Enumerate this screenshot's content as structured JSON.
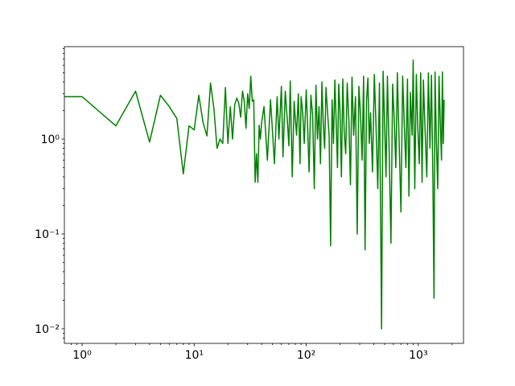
{
  "chart_data": {
    "type": "line",
    "color": "#008000",
    "xscale": "log",
    "yscale": "log",
    "x": [
      0.7,
      1,
      2,
      3,
      4,
      5,
      6,
      7,
      8,
      9,
      10,
      11,
      12,
      13,
      14,
      15,
      16,
      17,
      18,
      19,
      20,
      21,
      22,
      23,
      24,
      25,
      26,
      27,
      28,
      29,
      30,
      31,
      32,
      33,
      34,
      35,
      36,
      37,
      38,
      39,
      40,
      42,
      45,
      48,
      50,
      52,
      55,
      57,
      60,
      62,
      65,
      68,
      70,
      72,
      75,
      78,
      80,
      82,
      85,
      88,
      90,
      93,
      96,
      100,
      103,
      106,
      110,
      114,
      118,
      122,
      126,
      130,
      134,
      138,
      142,
      146,
      150,
      155,
      160,
      165,
      170,
      175,
      180,
      185,
      190,
      195,
      200,
      206,
      212,
      218,
      225,
      232,
      240,
      248,
      256,
      265,
      275,
      285,
      295,
      305,
      315,
      325,
      335,
      345,
      355,
      365,
      375,
      390,
      405,
      420,
      435,
      450,
      470,
      485,
      500,
      515,
      530,
      550,
      570,
      590,
      610,
      630,
      650,
      675,
      700,
      725,
      750,
      775,
      800,
      825,
      850,
      880,
      900,
      930,
      960,
      990,
      1020,
      1050,
      1080,
      1110,
      1150,
      1190,
      1230,
      1270,
      1310,
      1350,
      1380,
      1410,
      1450,
      1490,
      1530,
      1570,
      1610,
      1640,
      1670,
      1700
    ],
    "values": [
      2.8,
      2.8,
      1.38,
      3.2,
      0.93,
      2.9,
      2.2,
      1.65,
      0.43,
      1.38,
      1.25,
      2.9,
      1.5,
      1.08,
      3.9,
      2.1,
      0.8,
      1.0,
      0.9,
      3.5,
      0.9,
      2.2,
      1.0,
      2.3,
      2.7,
      2.4,
      1.7,
      3.2,
      2.5,
      1.3,
      3.0,
      2.1,
      4.6,
      2.5,
      2.6,
      0.35,
      0.7,
      0.35,
      1.4,
      1.0,
      1.5,
      2.2,
      0.6,
      2.6,
      1.2,
      0.55,
      2.8,
      1.0,
      3.6,
      0.65,
      3.2,
      1.5,
      0.85,
      4.1,
      0.4,
      2.5,
      1.6,
      1.1,
      3.0,
      0.55,
      2.8,
      1.9,
      0.9,
      3.3,
      1.3,
      0.45,
      2.9,
      1.8,
      0.3,
      3.7,
      1.0,
      2.2,
      0.55,
      4.0,
      1.4,
      0.8,
      3.5,
      1.9,
      1.1,
      0.075,
      2.6,
      0.9,
      4.2,
      1.5,
      0.5,
      3.8,
      2.0,
      0.4,
      4.3,
      1.2,
      0.7,
      3.9,
      1.6,
      0.33,
      4.5,
      1.1,
      2.8,
      0.1,
      3.6,
      1.8,
      0.6,
      4.6,
      0.068,
      2.5,
      4.4,
      0.9,
      1.9,
      0.45,
      4.8,
      1.3,
      0.3,
      3.9,
      0.01,
      5.2,
      1.5,
      0.4,
      4.6,
      0.7,
      0.08,
      3.8,
      1.6,
      0.5,
      5.0,
      0.9,
      0.17,
      4.6,
      1.4,
      0.5,
      4.3,
      0.25,
      3.1,
      1.1,
      6.8,
      0.3,
      4.8,
      1.3,
      0.55,
      5.0,
      0.35,
      4.2,
      1.2,
      0.4,
      5.0,
      0.8,
      4.7,
      0.35,
      0.021,
      5.1,
      0.9,
      0.3,
      4.6,
      1.5,
      0.6,
      5.1,
      0.9,
      2.6
    ],
    "xlim": [
      0.695,
      2530
    ],
    "ylim": [
      0.00703,
      9.43
    ],
    "xticks": [
      {
        "value": 1,
        "label": "10⁰"
      },
      {
        "value": 10,
        "label": "10¹"
      },
      {
        "value": 100,
        "label": "10²"
      },
      {
        "value": 1000,
        "label": "10³"
      }
    ],
    "yticks": [
      {
        "value": 0.01,
        "label": "10⁻²"
      },
      {
        "value": 0.1,
        "label": "10⁻¹"
      },
      {
        "value": 1,
        "label": "10⁰"
      }
    ],
    "xminorticks": [
      0.8,
      0.9,
      2,
      3,
      4,
      5,
      6,
      7,
      8,
      9,
      20,
      30,
      40,
      50,
      60,
      70,
      80,
      90,
      200,
      300,
      400,
      500,
      600,
      700,
      800,
      900,
      2000
    ],
    "yminorticks": [
      0.008,
      0.009,
      0.02,
      0.03,
      0.04,
      0.05,
      0.06,
      0.07,
      0.08,
      0.09,
      0.2,
      0.3,
      0.4,
      0.5,
      0.6,
      0.7,
      0.8,
      0.9,
      2,
      3,
      4,
      5,
      6,
      7,
      8,
      9
    ]
  }
}
